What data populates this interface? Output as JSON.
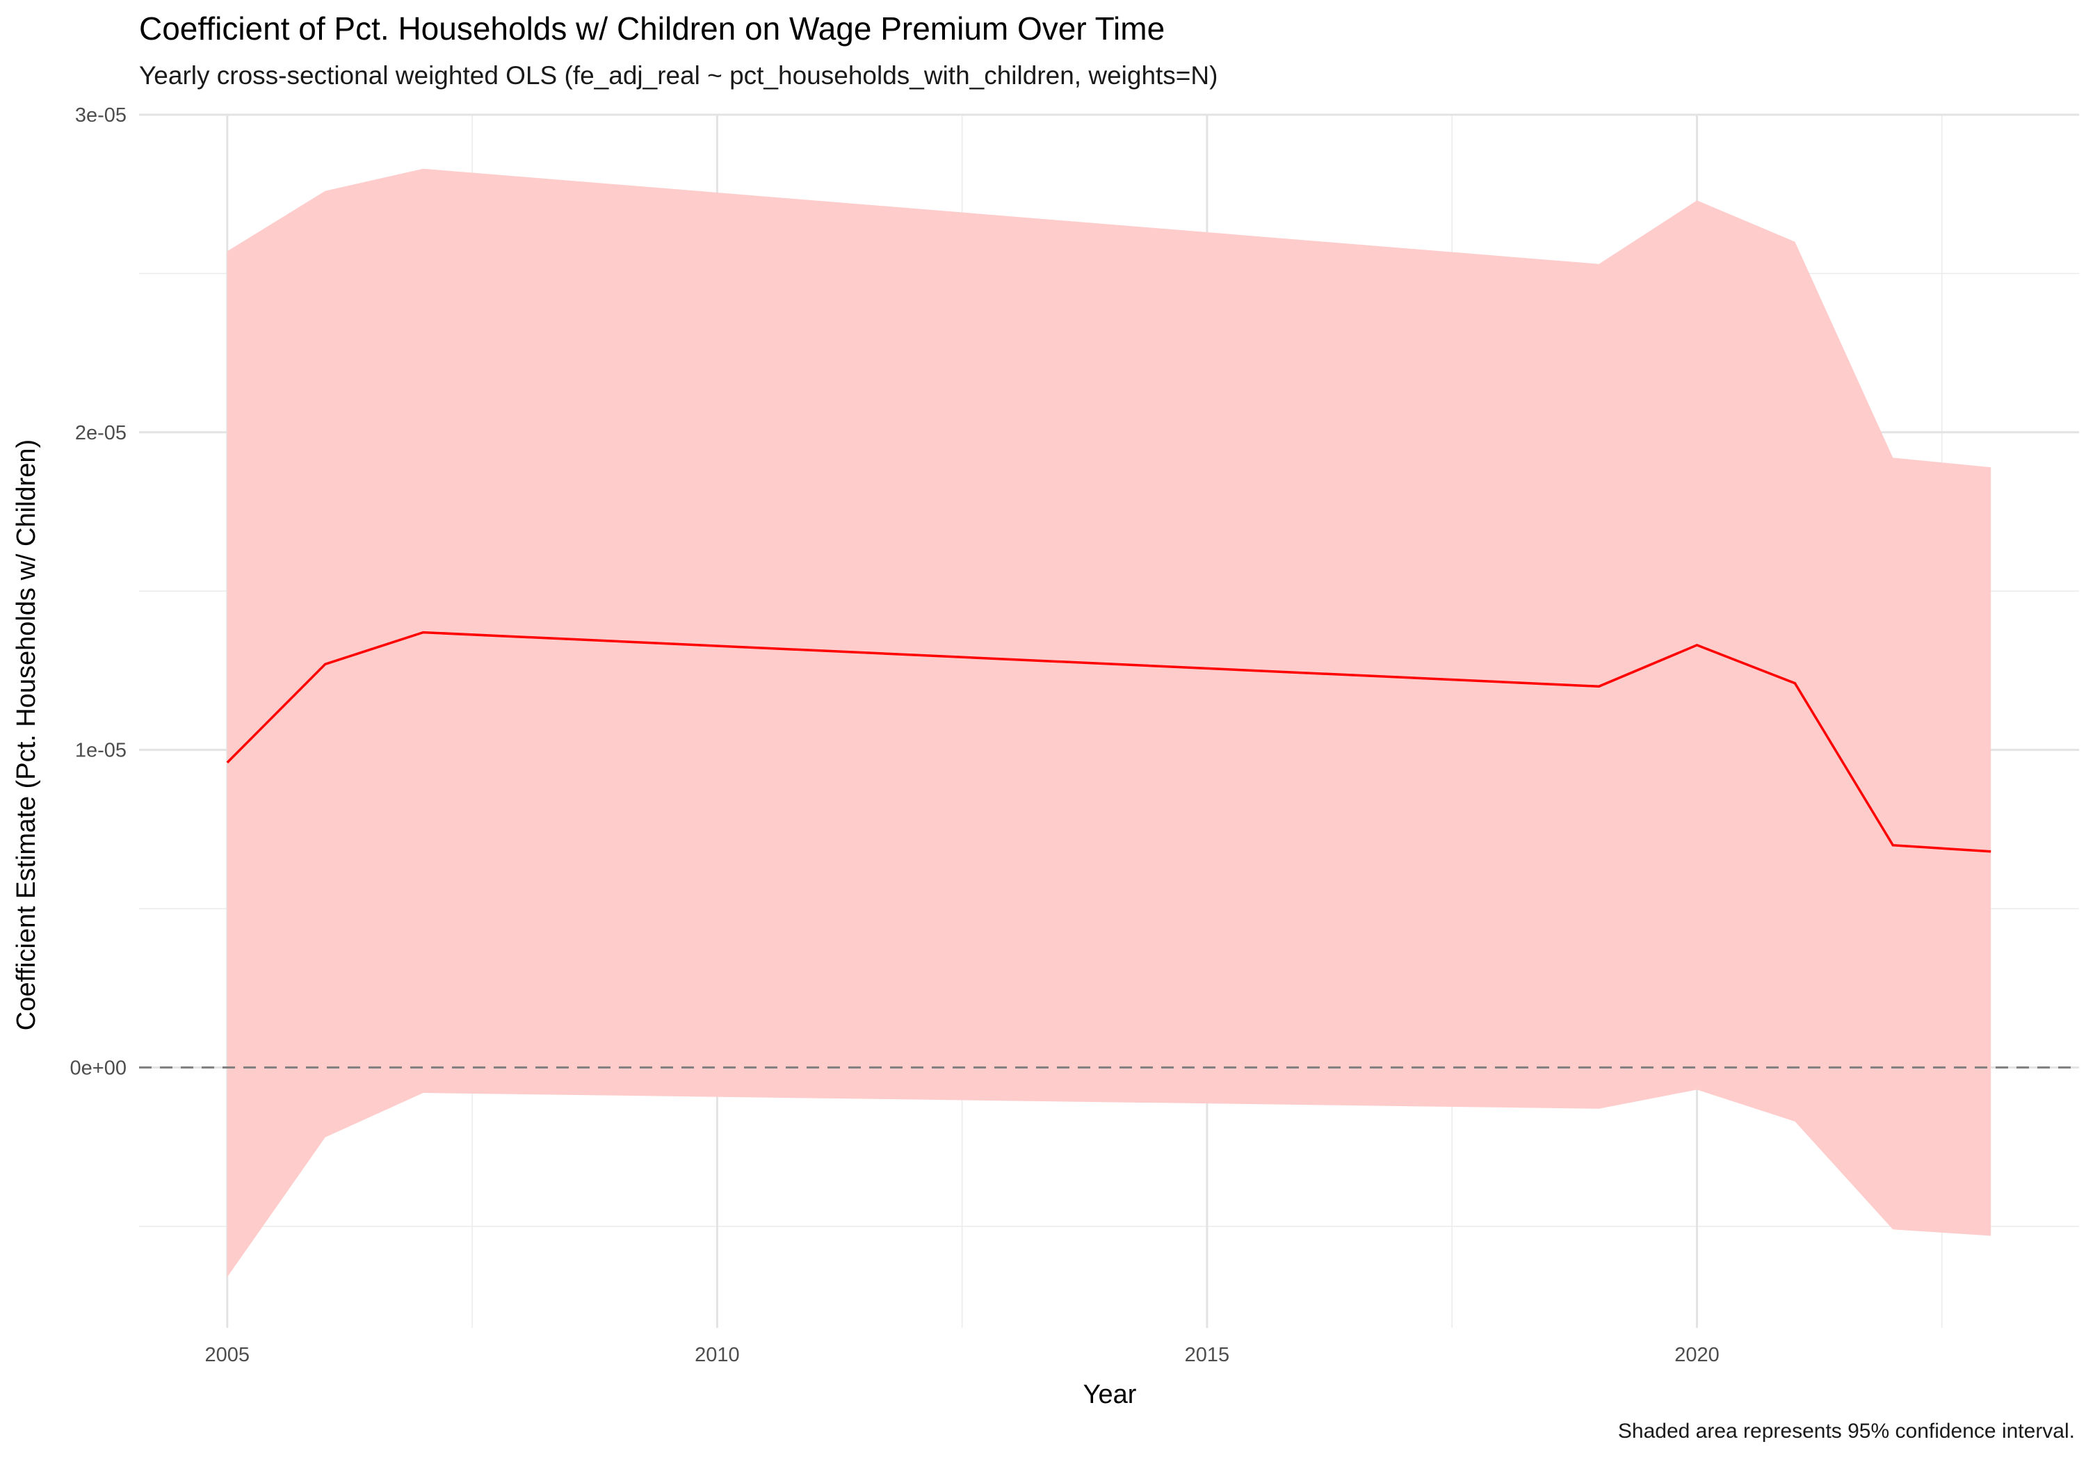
{
  "chart_data": {
    "type": "line",
    "title": "Coefficient of Pct. Households w/ Children on Wage Premium Over Time",
    "subtitle": "Yearly cross-sectional weighted OLS (fe_adj_real ~ pct_households_with_children, weights=N)",
    "caption": "Shaded area represents 95% confidence interval.",
    "xlabel": "Year",
    "ylabel": "Coefficient Estimate (Pct. Households w/ Children)",
    "xlim": [
      2004.1,
      2023.9
    ],
    "ylim": [
      -8.2e-06,
      3e-05
    ],
    "x_ticks": [
      2005,
      2010,
      2015,
      2020
    ],
    "x_tick_labels": [
      "2005",
      "2010",
      "2015",
      "2020"
    ],
    "y_ticks": [
      0,
      1e-05,
      2e-05,
      3e-05
    ],
    "y_tick_labels": [
      "0e+00",
      "1e-05",
      "2e-05",
      "3e-05"
    ],
    "grid": true,
    "reference_line": {
      "y": 0,
      "style": "dashed",
      "color": "#7f7f7f"
    },
    "x": [
      2005,
      2006,
      2007,
      2019,
      2020,
      2021,
      2022,
      2023
    ],
    "series": [
      {
        "values": [
          9.6e-06,
          1.27e-05,
          1.37e-05,
          1.2e-05,
          1.33e-05,
          1.21e-05,
          7e-06,
          6.8e-06
        ],
        "color": "#ff0000"
      }
    ],
    "ribbon": {
      "lower": [
        -6.6e-06,
        -2.2e-06,
        -8e-07,
        -1.3e-06,
        -7e-07,
        -1.7e-06,
        -5.1e-06,
        -5.3e-06
      ],
      "upper": [
        2.57e-05,
        2.76e-05,
        2.83e-05,
        2.53e-05,
        2.73e-05,
        2.6e-05,
        1.92e-05,
        1.89e-05
      ],
      "color": "#ffcccc"
    }
  }
}
